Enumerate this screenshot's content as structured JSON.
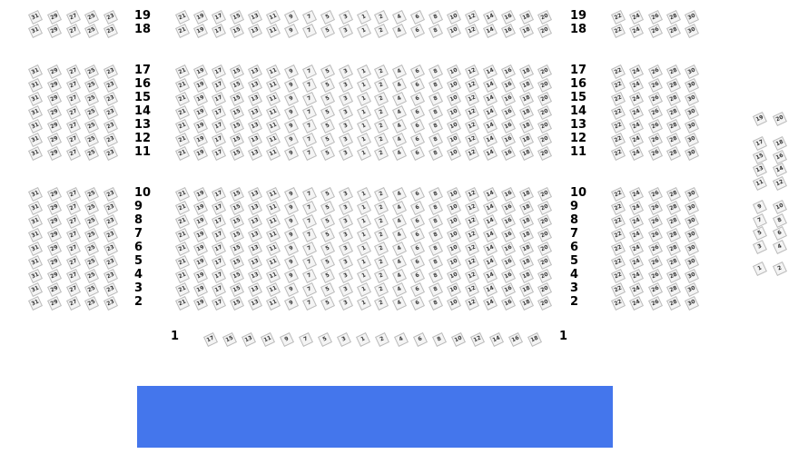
{
  "colors": {
    "stage": "#4476ec",
    "seat_border": "#bbbbbb"
  },
  "sections": {
    "left": {
      "seats": [
        31,
        29,
        27,
        25,
        23
      ]
    },
    "center": {
      "seats": [
        21,
        19,
        17,
        15,
        13,
        11,
        9,
        7,
        5,
        3,
        1,
        2,
        4,
        6,
        8,
        10,
        12,
        14,
        16,
        18,
        20
      ]
    },
    "right": {
      "seats": [
        22,
        24,
        26,
        28,
        30
      ]
    },
    "front": {
      "seats": [
        17,
        15,
        13,
        11,
        9,
        7,
        5,
        3,
        1,
        2,
        4,
        6,
        8,
        10,
        12,
        14,
        16,
        18
      ]
    }
  },
  "rows": [
    "19",
    "18",
    "17",
    "16",
    "15",
    "14",
    "13",
    "12",
    "11",
    "10",
    "9",
    "8",
    "7",
    "6",
    "5",
    "4",
    "3",
    "2"
  ],
  "front_row": "1",
  "side_block": {
    "pairs": [
      [
        19,
        20
      ],
      [
        17,
        18
      ],
      [
        15,
        16
      ],
      [
        13,
        14
      ],
      [
        11,
        12
      ],
      [
        9,
        10
      ],
      [
        7,
        8
      ],
      [
        5,
        6
      ],
      [
        3,
        4
      ],
      [
        1,
        2
      ]
    ]
  },
  "stage": {
    "label": ""
  }
}
